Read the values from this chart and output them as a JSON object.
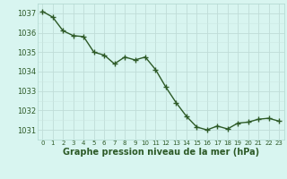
{
  "x": [
    0,
    1,
    2,
    3,
    4,
    5,
    6,
    7,
    8,
    9,
    10,
    11,
    12,
    13,
    14,
    15,
    16,
    17,
    18,
    19,
    20,
    21,
    22,
    23
  ],
  "y": [
    1037.1,
    1036.8,
    1036.1,
    1035.85,
    1035.8,
    1035.0,
    1034.85,
    1034.4,
    1034.75,
    1034.6,
    1034.75,
    1034.1,
    1033.2,
    1032.4,
    1031.7,
    1031.15,
    1031.0,
    1031.2,
    1031.05,
    1031.35,
    1031.4,
    1031.55,
    1031.6,
    1031.45
  ],
  "line_color": "#2d5a27",
  "marker": "+",
  "marker_size": 4,
  "linewidth": 1.0,
  "bg_color": "#d8f5f0",
  "grid_color": "#b0d8d0",
  "tick_color": "#2d5a27",
  "label_color": "#2d5a27",
  "xlabel": "Graphe pression niveau de la mer (hPa)",
  "xlabel_fontsize": 7,
  "xlabel_fontweight": "bold",
  "xlim": [
    -0.5,
    23.5
  ],
  "ylim": [
    1030.5,
    1037.5
  ],
  "yticks": [
    1031,
    1032,
    1033,
    1034,
    1035,
    1036,
    1037
  ],
  "xticks": [
    0,
    1,
    2,
    3,
    4,
    5,
    6,
    7,
    8,
    9,
    10,
    11,
    12,
    13,
    14,
    15,
    16,
    17,
    18,
    19,
    20,
    21,
    22,
    23
  ],
  "grid_major_color": "#c0ddd8",
  "grid_minor_color": "#cce8e2",
  "ytick_fontsize": 6,
  "xtick_fontsize": 5
}
